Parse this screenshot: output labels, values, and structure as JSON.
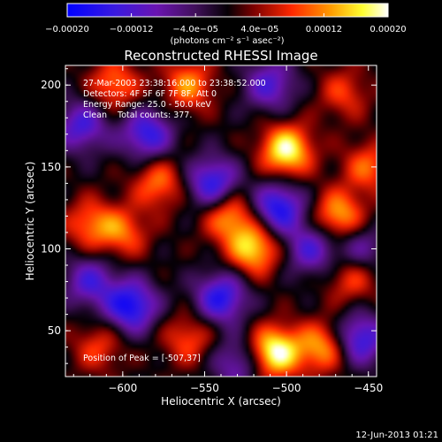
{
  "chart_data": {
    "type": "heatmap",
    "title": "Reconstructed RHESSI Image",
    "xlabel": "Heliocentric X (arcsec)",
    "ylabel": "Heliocentric Y (arcsec)",
    "xlim": [
      -635,
      -445
    ],
    "ylim": [
      22,
      212
    ],
    "xticks": [
      -600,
      -550,
      -500,
      -450
    ],
    "yticks": [
      50,
      100,
      150,
      200
    ],
    "colorbar": {
      "ticks": [
        -0.0002,
        -0.00012,
        -4e-05,
        4e-05,
        0.00012,
        0.0002
      ],
      "tick_labels": [
        "-0.00020",
        "-0.00012",
        "-4.0e-05",
        "4.0e-05",
        "0.00012",
        "0.00020"
      ],
      "unit_label": "(photons cm⁻² s⁻¹ asec⁻²)",
      "range": [
        -0.0002,
        0.0002
      ],
      "colors": [
        "#0000ff",
        "#5a0fa0",
        "#400860",
        "#000000",
        "#8b0000",
        "#ff3000",
        "#ffa500",
        "#ffff40",
        "#ffffff"
      ]
    },
    "annotations": [
      "27-Mar-2003 23:38:16.000 to 23:38:52.000",
      "Detectors: 4F 5F 6F 7F 8F, Att 0",
      "Energy Range: 25.0 - 50.0 keV",
      "Clean    Total counts: 377."
    ],
    "peak_label": "Position of Peak = [-507,37]",
    "peak": [
      -507,
      37
    ],
    "blobs": [
      {
        "x": -507,
        "y": 37,
        "v": 0.0002
      },
      {
        "x": -500,
        "y": 160,
        "v": 0.00019
      },
      {
        "x": -520,
        "y": 100,
        "v": 0.00016
      },
      {
        "x": -468,
        "y": 120,
        "v": 0.00014
      },
      {
        "x": -478,
        "y": 40,
        "v": 0.00013
      },
      {
        "x": -535,
        "y": 120,
        "v": 0.00013
      },
      {
        "x": -600,
        "y": 110,
        "v": 0.0001
      },
      {
        "x": -620,
        "y": 115,
        "v": 0.0001
      },
      {
        "x": -605,
        "y": 200,
        "v": 0.00011
      },
      {
        "x": -560,
        "y": 200,
        "v": 0.00012
      },
      {
        "x": -578,
        "y": 140,
        "v": 0.00011
      },
      {
        "x": -560,
        "y": 45,
        "v": 9e-05
      },
      {
        "x": -615,
        "y": 40,
        "v": 8e-05
      },
      {
        "x": -460,
        "y": 82,
        "v": 9e-05
      },
      {
        "x": -450,
        "y": 150,
        "v": 0.0001
      },
      {
        "x": -465,
        "y": 195,
        "v": 8e-05
      },
      {
        "x": -595,
        "y": 65,
        "v": -0.00018
      },
      {
        "x": -540,
        "y": 70,
        "v": -0.00016
      },
      {
        "x": -505,
        "y": 125,
        "v": -0.00017
      },
      {
        "x": -585,
        "y": 170,
        "v": -0.00015
      },
      {
        "x": -625,
        "y": 175,
        "v": -0.00013
      },
      {
        "x": -545,
        "y": 140,
        "v": -0.00016
      },
      {
        "x": -455,
        "y": 45,
        "v": -0.00015
      },
      {
        "x": -510,
        "y": 200,
        "v": -0.00012
      },
      {
        "x": -485,
        "y": 100,
        "v": -0.00012
      },
      {
        "x": -620,
        "y": 80,
        "v": -0.00012
      },
      {
        "x": -530,
        "y": 30,
        "v": -0.0001
      },
      {
        "x": -455,
        "y": 100,
        "v": -9e-05
      }
    ]
  },
  "footer": {
    "timestamp": "12-Jun-2013 01:21"
  }
}
